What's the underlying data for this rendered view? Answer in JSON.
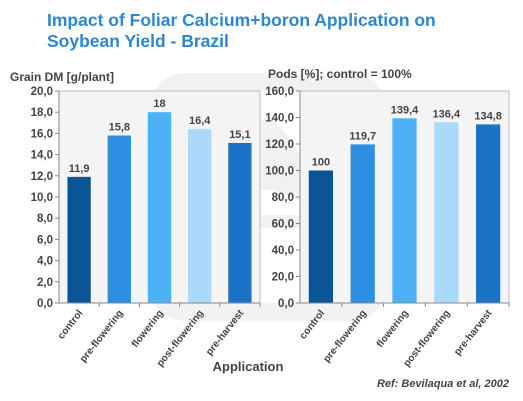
{
  "title_line1": "Impact of Foliar Calcium+boron Application on",
  "title_line2": "Soybean Yield - Brazil",
  "reference": "Ref: Bevilaqua et al, 2002",
  "watermark_text": "YARA",
  "colors": {
    "title": "#2e86d0",
    "plot_bg": "#f4f4f4",
    "bars": [
      "#0b5596",
      "#2e8fe0",
      "#4cb1f5",
      "#aad9fb",
      "#1b73c6"
    ]
  },
  "chart_data": [
    {
      "type": "bar",
      "title": "",
      "ylabel": "Grain DM [g/plant]",
      "xlabel": "Application",
      "categories": [
        "control",
        "pre-flowering",
        "flowering",
        "post-flowering",
        "pre-harvest"
      ],
      "values": [
        11.9,
        15.8,
        18,
        16.4,
        15.1
      ],
      "value_labels": [
        "11,9",
        "15,8",
        "18",
        "16,4",
        "15,1"
      ],
      "ylim": [
        0,
        20
      ],
      "yticks": [
        "0,0",
        "2,0",
        "4,0",
        "6,0",
        "8,0",
        "10,0",
        "12,0",
        "14,0",
        "16,0",
        "18,0",
        "20,0"
      ],
      "grid": false
    },
    {
      "type": "bar",
      "title": "",
      "ylabel": "Pods [%]; control = 100%",
      "xlabel": "",
      "categories": [
        "control",
        "pre-flowering",
        "flowering",
        "post-flowering",
        "pre-harvest"
      ],
      "values": [
        100,
        119.7,
        139.4,
        136.4,
        134.8
      ],
      "value_labels": [
        "100",
        "119,7",
        "139,4",
        "136,4",
        "134,8"
      ],
      "ylim": [
        0,
        160
      ],
      "yticks": [
        "0,0",
        "20,0",
        "40,0",
        "60,0",
        "80,0",
        "100,0",
        "120,0",
        "140,0",
        "160,0"
      ],
      "grid": false
    }
  ]
}
